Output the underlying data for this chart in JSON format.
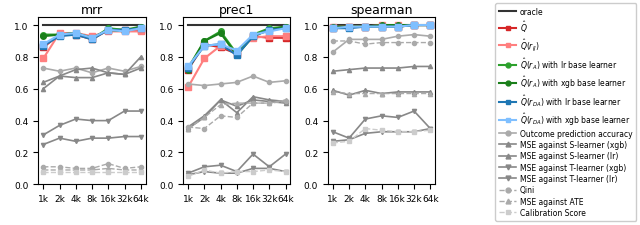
{
  "x_labels": [
    "1k",
    "2k",
    "4k",
    "8k",
    "16k",
    "32k",
    "64k"
  ],
  "x_vals": [
    1,
    2,
    3,
    4,
    5,
    6,
    7
  ],
  "titles": [
    "mrr",
    "prec1",
    "spearman"
  ],
  "series": {
    "oracle": {
      "color": "#333333",
      "lw": 1.5,
      "ls": "-",
      "marker": null,
      "ms": 0,
      "mrr": [
        1.0,
        1.0,
        1.0,
        1.0,
        1.0,
        1.0,
        1.0
      ],
      "prec1": [
        1.0,
        1.0,
        1.0,
        1.0,
        1.0,
        1.0,
        1.0
      ],
      "spearman": [
        1.0,
        1.0,
        1.0,
        1.0,
        1.0,
        1.0,
        1.0
      ]
    },
    "Q_hat": {
      "color": "#d62728",
      "lw": 1.5,
      "ls": "-",
      "marker": "s",
      "ms": 4,
      "mrr": [
        0.86,
        0.94,
        0.94,
        0.91,
        0.97,
        0.97,
        0.97
      ],
      "prec1": [
        0.72,
        0.88,
        0.86,
        0.82,
        0.93,
        0.92,
        0.92
      ],
      "spearman": [
        0.98,
        0.99,
        0.99,
        0.99,
        0.99,
        1.0,
        1.0
      ]
    },
    "Q_hat_r_IJ": {
      "color": "#ff7f7f",
      "lw": 1.5,
      "ls": "-",
      "marker": "s",
      "ms": 4,
      "mrr": [
        0.79,
        0.95,
        0.95,
        0.93,
        0.96,
        0.96,
        0.96
      ],
      "prec1": [
        0.61,
        0.79,
        0.87,
        0.83,
        0.92,
        0.93,
        0.93
      ],
      "spearman": [
        0.99,
        0.99,
        0.99,
        1.0,
        1.0,
        1.0,
        1.0
      ]
    },
    "Q_hat_rA_lr": {
      "color": "#2ca02c",
      "lw": 1.5,
      "ls": "-",
      "marker": "o",
      "ms": 4,
      "mrr": [
        0.94,
        0.94,
        0.95,
        0.91,
        0.98,
        0.97,
        0.99
      ],
      "prec1": [
        0.73,
        0.9,
        0.96,
        0.82,
        0.94,
        0.98,
        0.99
      ],
      "spearman": [
        0.98,
        0.99,
        0.99,
        0.99,
        0.99,
        1.0,
        1.0
      ]
    },
    "Q_hat_rA_xgb": {
      "color": "#1a7f1a",
      "lw": 1.5,
      "ls": "-",
      "marker": "o",
      "ms": 4,
      "mrr": [
        0.93,
        0.94,
        0.95,
        0.92,
        0.97,
        0.96,
        0.99
      ],
      "prec1": [
        0.72,
        0.9,
        0.95,
        0.81,
        0.93,
        0.97,
        0.99
      ],
      "spearman": [
        0.99,
        0.99,
        0.99,
        1.0,
        1.0,
        1.0,
        1.0
      ]
    },
    "Q_hat_rDA_lr": {
      "color": "#1f77b4",
      "lw": 1.5,
      "ls": "-",
      "marker": "s",
      "ms": 4,
      "mrr": [
        0.87,
        0.93,
        0.94,
        0.91,
        0.97,
        0.97,
        0.98
      ],
      "prec1": [
        0.73,
        0.87,
        0.88,
        0.81,
        0.93,
        0.97,
        0.98
      ],
      "spearman": [
        0.98,
        0.98,
        0.99,
        0.99,
        0.99,
        1.0,
        1.0
      ]
    },
    "Q_hat_rDA_xgb": {
      "color": "#7fbfff",
      "lw": 1.5,
      "ls": "-",
      "marker": "s",
      "ms": 4,
      "mrr": [
        0.88,
        0.94,
        0.95,
        0.92,
        0.97,
        0.96,
        0.98
      ],
      "prec1": [
        0.74,
        0.87,
        0.88,
        0.84,
        0.94,
        0.96,
        0.98
      ],
      "spearman": [
        0.98,
        0.99,
        0.99,
        0.99,
        0.99,
        1.0,
        1.0
      ]
    },
    "outcome_pred_acc": {
      "color": "#aaaaaa",
      "lw": 1.2,
      "ls": "-",
      "marker": "o",
      "ms": 3,
      "mrr": [
        0.73,
        0.71,
        0.73,
        0.7,
        0.73,
        0.71,
        0.74
      ],
      "prec1": [
        0.63,
        0.62,
        0.63,
        0.64,
        0.68,
        0.64,
        0.65
      ],
      "spearman": [
        0.83,
        0.91,
        0.91,
        0.91,
        0.93,
        0.94,
        0.93
      ]
    },
    "mse_s_xgb": {
      "color": "#888888",
      "lw": 1.2,
      "ls": "-",
      "marker": "^",
      "ms": 3,
      "mrr": [
        0.6,
        0.68,
        0.67,
        0.67,
        0.7,
        0.69,
        0.8
      ],
      "prec1": [
        0.36,
        0.43,
        0.53,
        0.45,
        0.55,
        0.53,
        0.52
      ],
      "spearman": [
        0.59,
        0.56,
        0.59,
        0.57,
        0.58,
        0.58,
        0.58
      ]
    },
    "mse_s_lr": {
      "color": "#888888",
      "lw": 1.2,
      "ls": "-",
      "marker": "^",
      "ms": 3,
      "mrr": [
        0.64,
        0.68,
        0.72,
        0.73,
        0.7,
        0.69,
        0.73
      ],
      "prec1": [
        0.35,
        0.42,
        0.53,
        0.49,
        0.53,
        0.52,
        0.51
      ],
      "spearman": [
        0.71,
        0.72,
        0.73,
        0.73,
        0.73,
        0.74,
        0.74
      ]
    },
    "mse_t_xgb": {
      "color": "#888888",
      "lw": 1.2,
      "ls": "-",
      "marker": "v",
      "ms": 3,
      "mrr": [
        0.31,
        0.37,
        0.41,
        0.4,
        0.4,
        0.46,
        0.46
      ],
      "prec1": [
        0.07,
        0.11,
        0.12,
        0.08,
        0.19,
        0.11,
        0.19
      ],
      "spearman": [
        0.33,
        0.29,
        0.41,
        0.43,
        0.42,
        0.46,
        0.35
      ]
    },
    "mse_t_lr": {
      "color": "#888888",
      "lw": 1.2,
      "ls": "-",
      "marker": "v",
      "ms": 3,
      "mrr": [
        0.25,
        0.29,
        0.27,
        0.29,
        0.29,
        0.3,
        0.3
      ],
      "prec1": [
        0.06,
        0.08,
        0.07,
        0.07,
        0.1,
        0.1,
        0.08
      ],
      "spearman": [
        0.27,
        0.28,
        0.32,
        0.33,
        0.33,
        0.33,
        0.35
      ]
    },
    "qini": {
      "color": "#aaaaaa",
      "lw": 1.0,
      "ls": "--",
      "marker": "o",
      "ms": 3,
      "mrr": [
        0.11,
        0.11,
        0.1,
        0.1,
        0.13,
        0.1,
        0.11
      ],
      "prec1": [
        0.36,
        0.35,
        0.43,
        0.42,
        0.51,
        0.51,
        0.52
      ],
      "spearman": [
        0.9,
        0.9,
        0.88,
        0.89,
        0.89,
        0.89,
        0.89
      ]
    },
    "mse_ate": {
      "color": "#aaaaaa",
      "lw": 1.0,
      "ls": "--",
      "marker": "^",
      "ms": 3,
      "mrr": [
        0.09,
        0.09,
        0.09,
        0.09,
        0.1,
        0.09,
        0.09
      ],
      "prec1": [
        0.35,
        0.42,
        0.5,
        0.51,
        0.51,
        0.51,
        0.53
      ],
      "spearman": [
        0.58,
        0.57,
        0.57,
        0.57,
        0.57,
        0.57,
        0.57
      ]
    },
    "calib_score": {
      "color": "#cccccc",
      "lw": 1.0,
      "ls": "--",
      "marker": "s",
      "ms": 3,
      "mrr": [
        0.08,
        0.08,
        0.08,
        0.08,
        0.08,
        0.08,
        0.08
      ],
      "prec1": [
        0.05,
        0.09,
        0.07,
        0.08,
        0.08,
        0.09,
        0.08
      ],
      "spearman": [
        0.26,
        0.27,
        0.35,
        0.34,
        0.33,
        0.33,
        0.34
      ]
    }
  },
  "legend_entries": [
    {
      "label": "oracle",
      "color": "#333333",
      "ls": "-",
      "marker": null,
      "lw": 1.5
    },
    {
      "label": "$\\hat{Q}$",
      "color": "#d62728",
      "ls": "-",
      "marker": "s",
      "lw": 1.5
    },
    {
      "label": "$\\hat{Q}(r_{IJ})$",
      "color": "#ff7f7f",
      "ls": "-",
      "marker": "s",
      "lw": 1.5
    },
    {
      "label": "$\\hat{Q}(r_A)$ with lr base learner",
      "color": "#2ca02c",
      "ls": "-",
      "marker": "o",
      "lw": 1.5
    },
    {
      "label": "$\\hat{Q}(r_A)$ with xgb base learner",
      "color": "#1a7f1a",
      "ls": "-",
      "marker": "o",
      "lw": 1.5
    },
    {
      "label": "$\\hat{Q}(r_{DA})$ with lr base learner",
      "color": "#1f77b4",
      "ls": "-",
      "marker": "s",
      "lw": 1.5
    },
    {
      "label": "$\\hat{Q}(r_{DA})$ with xgb base learner",
      "color": "#7fbfff",
      "ls": "-",
      "marker": "s",
      "lw": 1.5
    },
    {
      "label": "Outcome prediction accuracy",
      "color": "#aaaaaa",
      "ls": "-",
      "marker": "o",
      "lw": 1.2
    },
    {
      "label": "MSE against S-learner (xgb)",
      "color": "#888888",
      "ls": "-",
      "marker": "^",
      "lw": 1.2
    },
    {
      "label": "MSE against S-learner (lr)",
      "color": "#888888",
      "ls": "-",
      "marker": "^",
      "lw": 1.2
    },
    {
      "label": "MSE against T-learner (xgb)",
      "color": "#888888",
      "ls": "-",
      "marker": "v",
      "lw": 1.2
    },
    {
      "label": "MSE against T-learner (lr)",
      "color": "#888888",
      "ls": "-",
      "marker": "v",
      "lw": 1.2
    },
    {
      "label": "Qini",
      "color": "#aaaaaa",
      "ls": "--",
      "marker": "o",
      "lw": 1.0
    },
    {
      "label": "MSE against ATE",
      "color": "#aaaaaa",
      "ls": "--",
      "marker": "^",
      "lw": 1.0
    },
    {
      "label": "Calibration Score",
      "color": "#cccccc",
      "ls": "--",
      "marker": "s",
      "lw": 1.0
    }
  ]
}
